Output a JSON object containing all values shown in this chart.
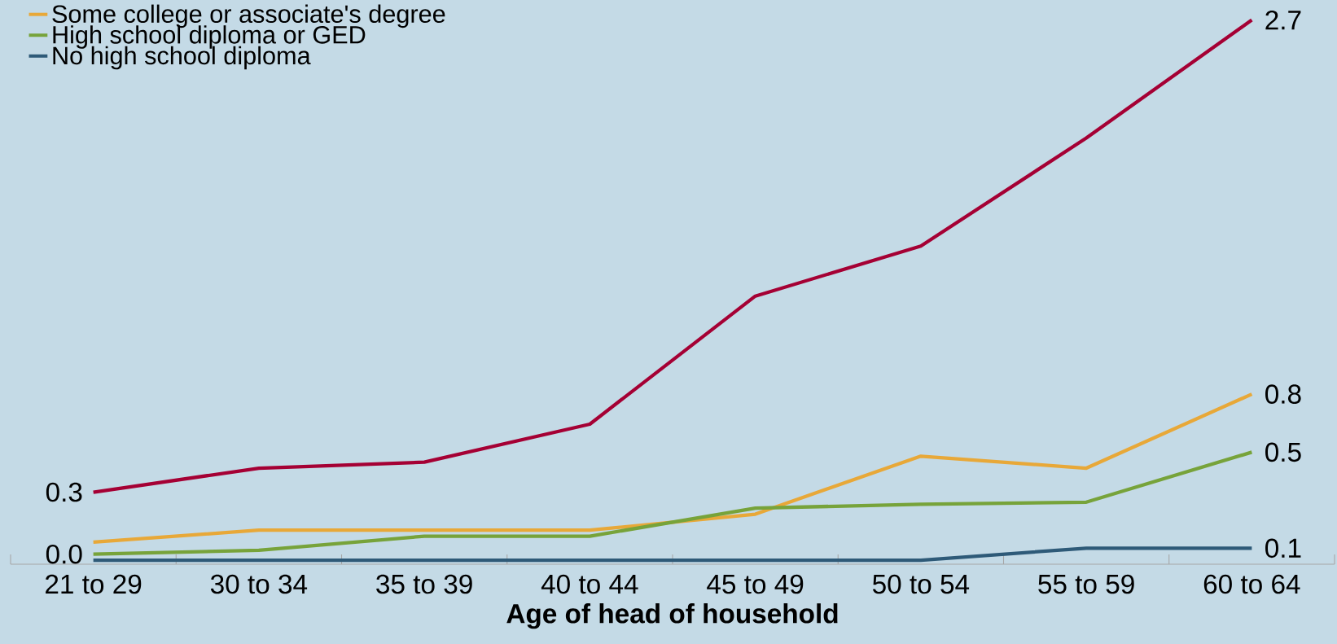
{
  "chart_data": {
    "type": "line",
    "xlabel": "Age of head of household",
    "categories": [
      "21 to 29",
      "30 to 34",
      "35 to 39",
      "40 to 44",
      "45 to 49",
      "50 to 54",
      "55 to 59",
      "60 to 64"
    ],
    "ylim": [
      -0.02,
      2.8
    ],
    "tick_labels": "x",
    "legend": "top left",
    "grid": false,
    "marker": "none",
    "line_style": "solid",
    "series": [
      {
        "color": "#a50034",
        "values": [
          0.34,
          0.46,
          0.49,
          0.68,
          1.32,
          1.57,
          2.11,
          2.7
        ],
        "value_labels": [
          "0.3",
          null,
          null,
          null,
          null,
          null,
          null,
          "2.7"
        ]
      },
      {
        "name": "Some college or associate's degree",
        "color": "#e8a838",
        "values": [
          0.09,
          0.15,
          0.15,
          0.15,
          0.23,
          0.52,
          0.46,
          0.83
        ],
        "value_labels": [
          null,
          null,
          null,
          null,
          null,
          null,
          null,
          "0.8"
        ]
      },
      {
        "name": "High school diploma or GED",
        "color": "#77a33a",
        "values": [
          0.03,
          0.05,
          0.12,
          0.12,
          0.26,
          0.28,
          0.29,
          0.54
        ],
        "value_labels": [
          "0.0",
          null,
          null,
          null,
          null,
          null,
          null,
          "0.5"
        ]
      },
      {
        "name": "No high school diploma",
        "color": "#2e5a78",
        "values": [
          0.0,
          0.0,
          0.0,
          0.0,
          0.0,
          0.0,
          0.06,
          0.06
        ],
        "value_labels": [
          null,
          null,
          null,
          null,
          null,
          null,
          null,
          "0.1"
        ]
      }
    ]
  }
}
